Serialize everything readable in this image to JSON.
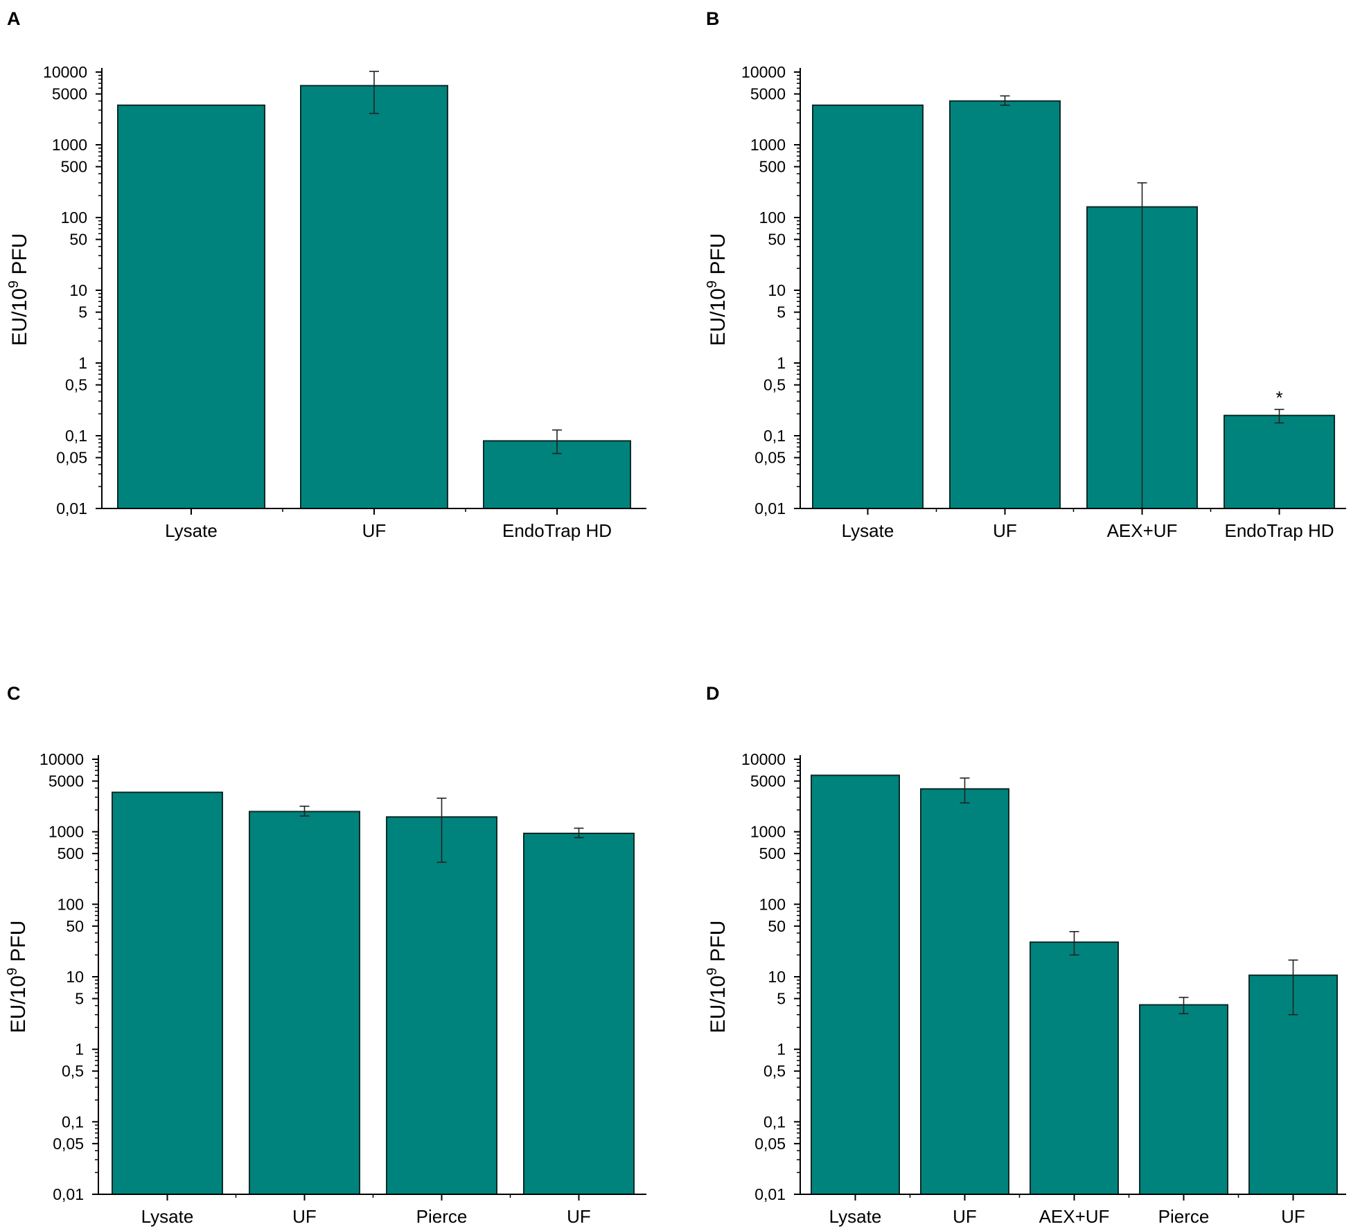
{
  "colors": {
    "bar": "#00837c",
    "bar_stroke": "#0b2b28",
    "axis": "#000000"
  },
  "chart_data": [
    {
      "panel_label": "A",
      "type": "bar",
      "yscale": "log",
      "ylim": [
        0.01,
        10000
      ],
      "ylabel": {
        "main": "EU/10",
        "sup": "9",
        "end": " PFU"
      },
      "ytick_values": [
        0.01,
        0.05,
        0.1,
        0.5,
        1,
        5,
        10,
        50,
        100,
        500,
        1000,
        5000,
        10000
      ],
      "ytick_labels": [
        "0,01",
        "0,05",
        "0,1",
        "0,5",
        "1",
        "5",
        "10",
        "50",
        "100",
        "500",
        "1000",
        "5000",
        "10000"
      ],
      "categories": [
        "Lysate",
        "UF",
        "EndoTrap HD"
      ],
      "values": [
        3500,
        6500,
        0.085
      ],
      "errors_low": [
        null,
        2700,
        0.057
      ],
      "errors_high": [
        null,
        10200,
        0.12
      ],
      "annotations": [
        null,
        null,
        null
      ]
    },
    {
      "panel_label": "B",
      "type": "bar",
      "yscale": "log",
      "ylim": [
        0.01,
        10000
      ],
      "ylabel": {
        "main": "EU/10",
        "sup": "9",
        "end": " PFU"
      },
      "ytick_values": [
        0.01,
        0.05,
        0.1,
        0.5,
        1,
        5,
        10,
        50,
        100,
        500,
        1000,
        5000,
        10000
      ],
      "ytick_labels": [
        "0,01",
        "0,05",
        "0,1",
        "0,5",
        "1",
        "5",
        "10",
        "50",
        "100",
        "500",
        "1000",
        "5000",
        "10000"
      ],
      "categories": [
        "Lysate",
        "UF",
        "AEX+UF",
        "EndoTrap HD"
      ],
      "values": [
        3500,
        4000,
        140,
        0.19
      ],
      "errors_low": [
        null,
        3500,
        0.01,
        0.15
      ],
      "errors_high": [
        null,
        4700,
        300,
        0.23
      ],
      "annotations": [
        null,
        null,
        null,
        "*"
      ]
    },
    {
      "panel_label": "C",
      "type": "bar",
      "yscale": "log",
      "ylim": [
        0.01,
        10000
      ],
      "ylabel": {
        "main": "EU/10",
        "sup": "9",
        "end": " PFU"
      },
      "ytick_values": [
        0.01,
        0.05,
        0.1,
        0.5,
        1,
        5,
        10,
        50,
        100,
        500,
        1000,
        5000,
        10000
      ],
      "ytick_labels": [
        "0,01",
        "0,05",
        "0,1",
        "0,5",
        "1",
        "5",
        "10",
        "50",
        "100",
        "500",
        "1000",
        "5000",
        "10000"
      ],
      "categories": [
        "Lysate",
        "UF",
        "Pierce",
        "UF"
      ],
      "values": [
        3500,
        1900,
        1600,
        950
      ],
      "errors_low": [
        null,
        1650,
        380,
        830
      ],
      "errors_high": [
        null,
        2250,
        2900,
        1120
      ],
      "annotations": [
        null,
        null,
        null,
        null
      ]
    },
    {
      "panel_label": "D",
      "type": "bar",
      "yscale": "log",
      "ylim": [
        0.01,
        10000
      ],
      "ylabel": {
        "main": "EU/10",
        "sup": "9",
        "end": " PFU"
      },
      "ytick_values": [
        0.01,
        0.05,
        0.1,
        0.5,
        1,
        5,
        10,
        50,
        100,
        500,
        1000,
        5000,
        10000
      ],
      "ytick_labels": [
        "0,01",
        "0,05",
        "0,1",
        "0,5",
        "1",
        "5",
        "10",
        "50",
        "100",
        "500",
        "1000",
        "5000",
        "10000"
      ],
      "categories": [
        "Lysate",
        "UF",
        "AEX+UF",
        "Pierce",
        "UF"
      ],
      "values": [
        6000,
        3900,
        30,
        4.1,
        10.5
      ],
      "errors_low": [
        null,
        2500,
        20,
        3.1,
        3
      ],
      "errors_high": [
        null,
        5500,
        42,
        5.2,
        17
      ],
      "annotations": [
        null,
        null,
        null,
        null,
        null
      ]
    }
  ]
}
